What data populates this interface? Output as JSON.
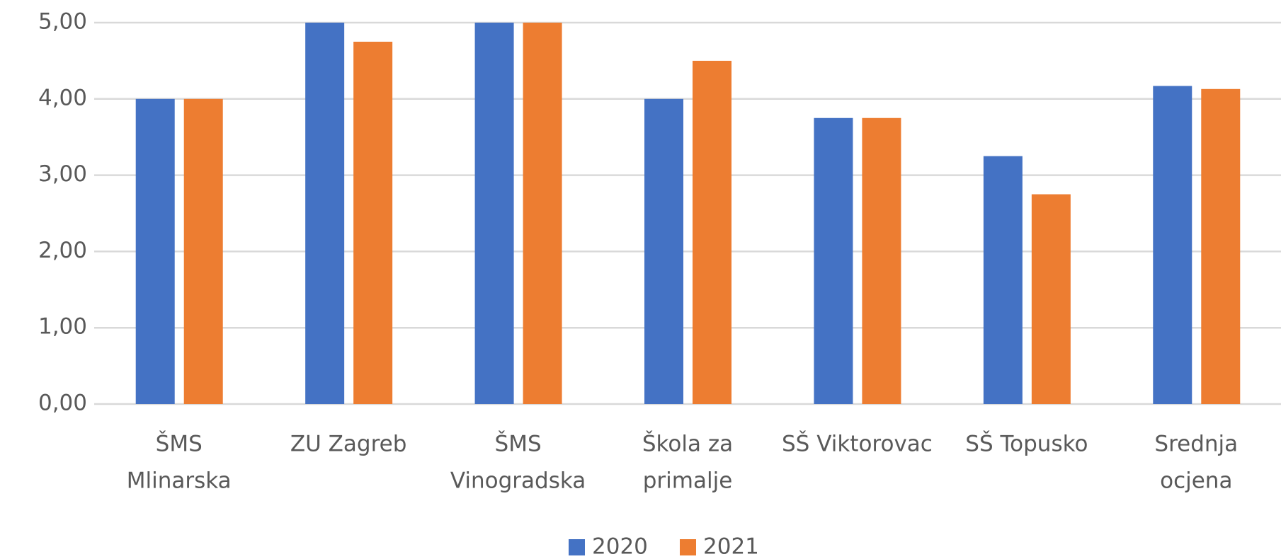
{
  "chart_data": {
    "type": "bar",
    "categories": [
      [
        "ŠMS",
        "Mlinarska"
      ],
      [
        "ZU Zagreb"
      ],
      [
        "ŠMS",
        "Vinogradska"
      ],
      [
        "Škola za",
        "primalje"
      ],
      [
        "SŠ Viktorovac"
      ],
      [
        "SŠ Topusko"
      ],
      [
        "Srednja",
        "ocjena"
      ]
    ],
    "series": [
      {
        "name": "2020",
        "color": "#4472c4",
        "values": [
          4.0,
          5.0,
          5.0,
          4.0,
          3.75,
          3.25,
          4.17
        ]
      },
      {
        "name": "2021",
        "color": "#ed7d31",
        "values": [
          4.0,
          4.75,
          5.0,
          4.5,
          3.75,
          2.75,
          4.13
        ]
      }
    ],
    "ylim": [
      0,
      5
    ],
    "yticks": [
      {
        "value": 0,
        "label": "0,00"
      },
      {
        "value": 1,
        "label": "1,00"
      },
      {
        "value": 2,
        "label": "2,00"
      },
      {
        "value": 3,
        "label": "3,00"
      },
      {
        "value": 4,
        "label": "4,00"
      },
      {
        "value": 5,
        "label": "5,00"
      }
    ],
    "grid": true,
    "legend": "bottom"
  }
}
